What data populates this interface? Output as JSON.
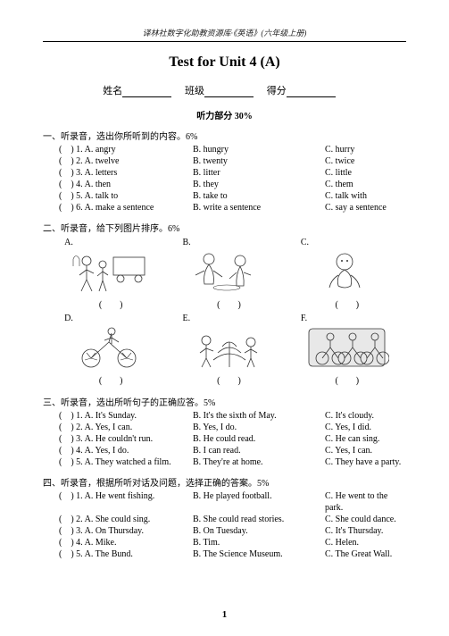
{
  "header": "译林社数字化助教资源库·《英语》(六年级上册)",
  "title": "Test for Unit 4 (A)",
  "info": {
    "name_label": "姓名",
    "class_label": "班级",
    "score_label": "得分"
  },
  "listening_label": "听力部分  30%",
  "s1": {
    "header": "一、听录音，选出你所听到的内容。6%",
    "rows": [
      {
        "a": "(　) 1. A.  angry",
        "b": "B.  hungry",
        "c": "C.  hurry"
      },
      {
        "a": "(　) 2. A.  twelve",
        "b": "B.  twenty",
        "c": "C.  twice"
      },
      {
        "a": "(　) 3. A.  letters",
        "b": "B.  litter",
        "c": "C.  little"
      },
      {
        "a": "(　) 4. A.  then",
        "b": "B.  they",
        "c": "C.  them"
      },
      {
        "a": "(　) 5. A.  talk to",
        "b": "B.  take to",
        "c": "C.  talk with"
      },
      {
        "a": "(　) 6. A.  make a sentence",
        "b": "B.  write a sentence",
        "c": "C.  say a sentence"
      }
    ]
  },
  "s2": {
    "header": "二、听录音，给下列图片排序。6%",
    "labels": [
      "A.",
      "B.",
      "C.",
      "D.",
      "E.",
      "F."
    ],
    "num": "(　　)"
  },
  "s3": {
    "header": "三、听录音，选出所听句子的正确应答。5%",
    "rows": [
      {
        "a": "(　) 1. A.  It's Sunday.",
        "b": "B.  It's the sixth of May.",
        "c": "C. It's cloudy."
      },
      {
        "a": "(　) 2. A.  Yes, I can.",
        "b": "B.  Yes, I do.",
        "c": "C. Yes, I did."
      },
      {
        "a": "(　) 3. A.  He couldn't run.",
        "b": "B.  He could read.",
        "c": "C. He can sing."
      },
      {
        "a": "(　) 4. A.  Yes, I do.",
        "b": "B.  I can read.",
        "c": "C. Yes, I can."
      },
      {
        "a": "(　) 5. A.  They watched a film.",
        "b": "B.  They're at home.",
        "c": "C. They have a party."
      }
    ]
  },
  "s4": {
    "header": "四、听录音，根据所听对话及问题，选择正确的答案。5%",
    "rows": [
      {
        "a": "(　) 1. A. He went fishing.",
        "b": "B. He played football.",
        "c": "C. He went to the park."
      },
      {
        "a": "(　) 2. A. She could sing.",
        "b": "B. She could read stories.",
        "c": "C. She could dance."
      },
      {
        "a": "(　) 3. A. On Thursday.",
        "b": "B. On Tuesday.",
        "c": "C. It's Thursday."
      },
      {
        "a": "(　) 4. A. Mike.",
        "b": "B. Tim.",
        "c": "C. Helen."
      },
      {
        "a": "(　) 5. A. The Bund.",
        "b": "B. The Science Museum.",
        "c": "C. The Great Wall."
      }
    ]
  },
  "page": "1"
}
